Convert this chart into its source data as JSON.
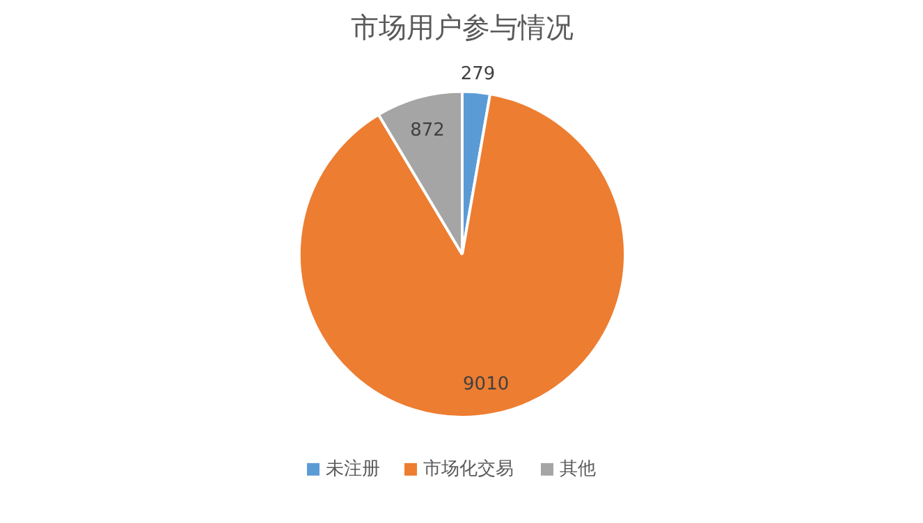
{
  "chart_data": {
    "type": "pie",
    "title": "市场用户参与情况",
    "categories": [
      "未注册",
      "市场化交易",
      "其他"
    ],
    "values": [
      279,
      9010,
      872
    ],
    "colors": [
      "#5b9bd5",
      "#ed7d31",
      "#a5a5a5"
    ],
    "data_labels": true,
    "legend": "bottom"
  }
}
